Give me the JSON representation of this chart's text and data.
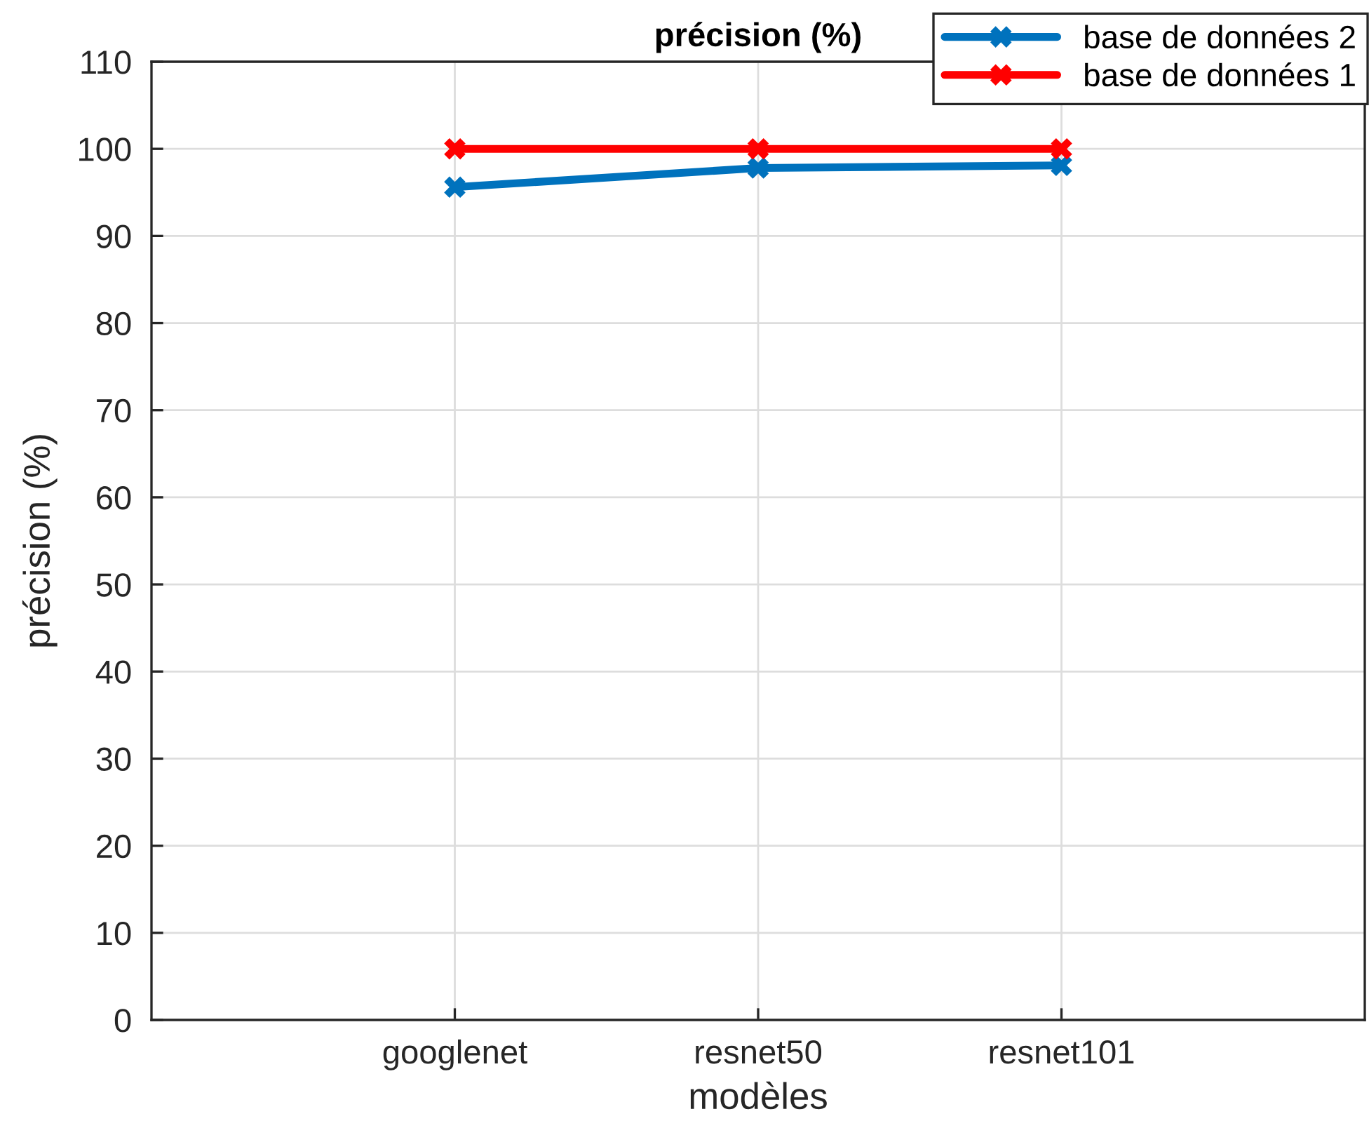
{
  "chart_data": {
    "type": "line",
    "title": "précision (%)",
    "xlabel": "modèles",
    "ylabel": "précision (%)",
    "categories": [
      "googlenet",
      "resnet50",
      "resnet101"
    ],
    "series": [
      {
        "name": "base de données 2",
        "color": "#0072bd",
        "values": [
          95.6,
          97.8,
          98.1
        ]
      },
      {
        "name": "base de données 1",
        "color": "#ff0000",
        "values": [
          100,
          100,
          100
        ]
      }
    ],
    "ylim": [
      0,
      110
    ],
    "yticks": [
      0,
      10,
      20,
      30,
      40,
      50,
      60,
      70,
      80,
      90,
      100,
      110
    ],
    "grid": true,
    "legend": "top right",
    "marker": "cross",
    "line_style": "solid"
  }
}
